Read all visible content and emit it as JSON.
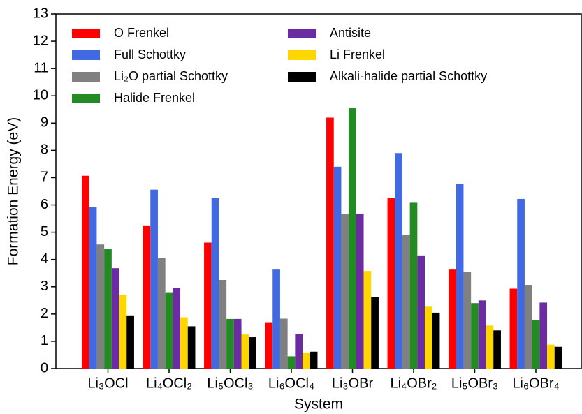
{
  "chart_data": {
    "type": "bar",
    "xlabel": "System",
    "ylabel": "Formation Energy (eV)",
    "categories": [
      "Li₃OCl",
      "Li₄OCl₂",
      "Li₅OCl₃",
      "Li₆OCl₄",
      "Li₃OBr",
      "Li₄OBr₂",
      "Li₅OBr₃",
      "Li₆OBr₄"
    ],
    "series": [
      {
        "name": "O Frenkel",
        "color": "#ff0000",
        "values": [
          7.07,
          5.25,
          4.62,
          1.7,
          9.2,
          6.26,
          3.63,
          2.93
        ]
      },
      {
        "name": "Full Schottky",
        "color": "#4169e1",
        "values": [
          5.93,
          6.56,
          6.25,
          3.63,
          7.4,
          7.9,
          6.78,
          6.22
        ]
      },
      {
        "name": "Li₂O partial Schottky",
        "color": "#808080",
        "values": [
          4.55,
          4.06,
          3.25,
          1.83,
          5.68,
          4.9,
          3.55,
          3.07
        ]
      },
      {
        "name": "Halide Frenkel",
        "color": "#228b22",
        "values": [
          4.4,
          2.8,
          1.82,
          0.45,
          9.57,
          6.08,
          2.4,
          1.78
        ]
      },
      {
        "name": "Antisite",
        "color": "#6a2ca0",
        "values": [
          3.68,
          2.95,
          1.82,
          1.27,
          5.68,
          4.15,
          2.5,
          2.42
        ]
      },
      {
        "name": "Li Frenkel",
        "color": "#ffd700",
        "values": [
          2.7,
          1.88,
          1.25,
          0.57,
          3.58,
          2.27,
          1.58,
          0.88
        ]
      },
      {
        "name": "Alkali-halide partial Schottky",
        "color": "#000000",
        "values": [
          1.95,
          1.55,
          1.15,
          0.62,
          2.63,
          2.05,
          1.4,
          0.8
        ]
      }
    ],
    "ylim": [
      0,
      13
    ],
    "yticks": [
      0,
      1,
      2,
      3,
      4,
      5,
      6,
      7,
      8,
      9,
      10,
      11,
      12,
      13
    ],
    "grid": false,
    "legend_loc": "upper left"
  }
}
